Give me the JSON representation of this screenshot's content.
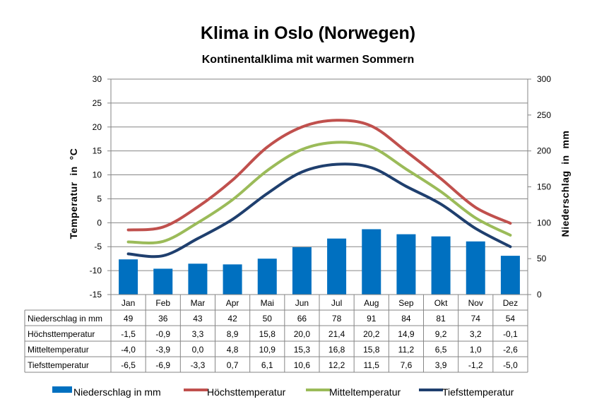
{
  "chart_data": {
    "type": "bar",
    "title": "Klima in Oslo (Norwegen)",
    "subtitle": "Kontinentalklima mit warmen Sommern",
    "ylabel_left": "Temperatur  in  °C",
    "ylabel_right": "Niederschlag  in  mm",
    "ylim_left": [
      -15,
      30
    ],
    "ylim_right": [
      0,
      300
    ],
    "yticks_left": [
      "30",
      "25",
      "20",
      "15",
      "10",
      "5",
      "0",
      "-5",
      "-10",
      "-15"
    ],
    "yticks_right": [
      "300",
      "250",
      "200",
      "150",
      "100",
      "50",
      "0"
    ],
    "categories": [
      "Jan",
      "Feb",
      "Mar",
      "Apr",
      "Mai",
      "Jun",
      "Jul",
      "Aug",
      "Sep",
      "Okt",
      "Nov",
      "Dez"
    ],
    "series": [
      {
        "name": "Niederschlag in mm",
        "type": "bar",
        "axis": "right",
        "color": "#0070C0",
        "values": [
          49,
          36,
          43,
          42,
          50,
          66,
          78,
          91,
          84,
          81,
          74,
          54
        ],
        "labels": [
          "49",
          "36",
          "43",
          "42",
          "50",
          "66",
          "78",
          "91",
          "84",
          "81",
          "74",
          "54"
        ]
      },
      {
        "name": "Höchsttemperatur",
        "type": "line",
        "axis": "left",
        "color": "#C0504D",
        "values": [
          -1.5,
          -0.9,
          3.3,
          8.9,
          15.8,
          20.0,
          21.4,
          20.2,
          14.9,
          9.2,
          3.2,
          -0.1
        ],
        "labels": [
          "-1,5",
          "-0,9",
          "3,3",
          "8,9",
          "15,8",
          "20,0",
          "21,4",
          "20,2",
          "14,9",
          "9,2",
          "3,2",
          "-0,1"
        ]
      },
      {
        "name": "Mitteltemperatur",
        "type": "line",
        "axis": "left",
        "color": "#9BBB59",
        "values": [
          -4.0,
          -3.9,
          0.0,
          4.8,
          10.9,
          15.3,
          16.8,
          15.8,
          11.2,
          6.5,
          1.0,
          -2.6
        ],
        "labels": [
          "-4,0",
          "-3,9",
          "0,0",
          "4,8",
          "10,9",
          "15,3",
          "16,8",
          "15,8",
          "11,2",
          "6,5",
          "1,0",
          "-2,6"
        ]
      },
      {
        "name": "Tiefsttemperatur",
        "type": "line",
        "axis": "left",
        "color": "#1F3F6E",
        "values": [
          -6.5,
          -6.9,
          -3.3,
          0.7,
          6.1,
          10.6,
          12.2,
          11.5,
          7.6,
          3.9,
          -1.2,
          -5.0
        ],
        "labels": [
          "-6,5",
          "-6,9",
          "-3,3",
          "0,7",
          "6,1",
          "10,6",
          "12,2",
          "11,5",
          "7,6",
          "3,9",
          "-1,2",
          "-5,0"
        ]
      }
    ],
    "grid": "horizontal",
    "legend": "bottom",
    "data_table": true
  }
}
